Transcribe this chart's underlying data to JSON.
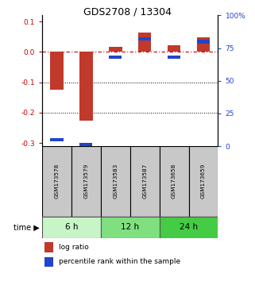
{
  "title": "GDS2708 / 13304",
  "samples": [
    "GSM173578",
    "GSM173579",
    "GSM173583",
    "GSM173587",
    "GSM173658",
    "GSM173659"
  ],
  "log_ratio": [
    -0.125,
    -0.225,
    0.018,
    0.065,
    0.022,
    0.048
  ],
  "percentile_rank": [
    5,
    1,
    68,
    82,
    68,
    80
  ],
  "time_groups": [
    {
      "label": "6 h",
      "samples": [
        0,
        1
      ],
      "color": "#c8f5c8"
    },
    {
      "label": "12 h",
      "samples": [
        2,
        3
      ],
      "color": "#80e080"
    },
    {
      "label": "24 h",
      "samples": [
        4,
        5
      ],
      "color": "#44cc44"
    }
  ],
  "ylim_left": [
    -0.31,
    0.12
  ],
  "ylim_right": [
    0,
    100
  ],
  "yticks_left": [
    0.1,
    0.0,
    -0.1,
    -0.2,
    -0.3
  ],
  "yticks_right": [
    100,
    75,
    50,
    25,
    0
  ],
  "bar_color_red": "#c0392b",
  "bar_color_blue": "#2244cc",
  "background_sample": "#c8c8c8",
  "legend_red_label": "log ratio",
  "legend_blue_label": "percentile rank within the sample",
  "bar_width": 0.45
}
